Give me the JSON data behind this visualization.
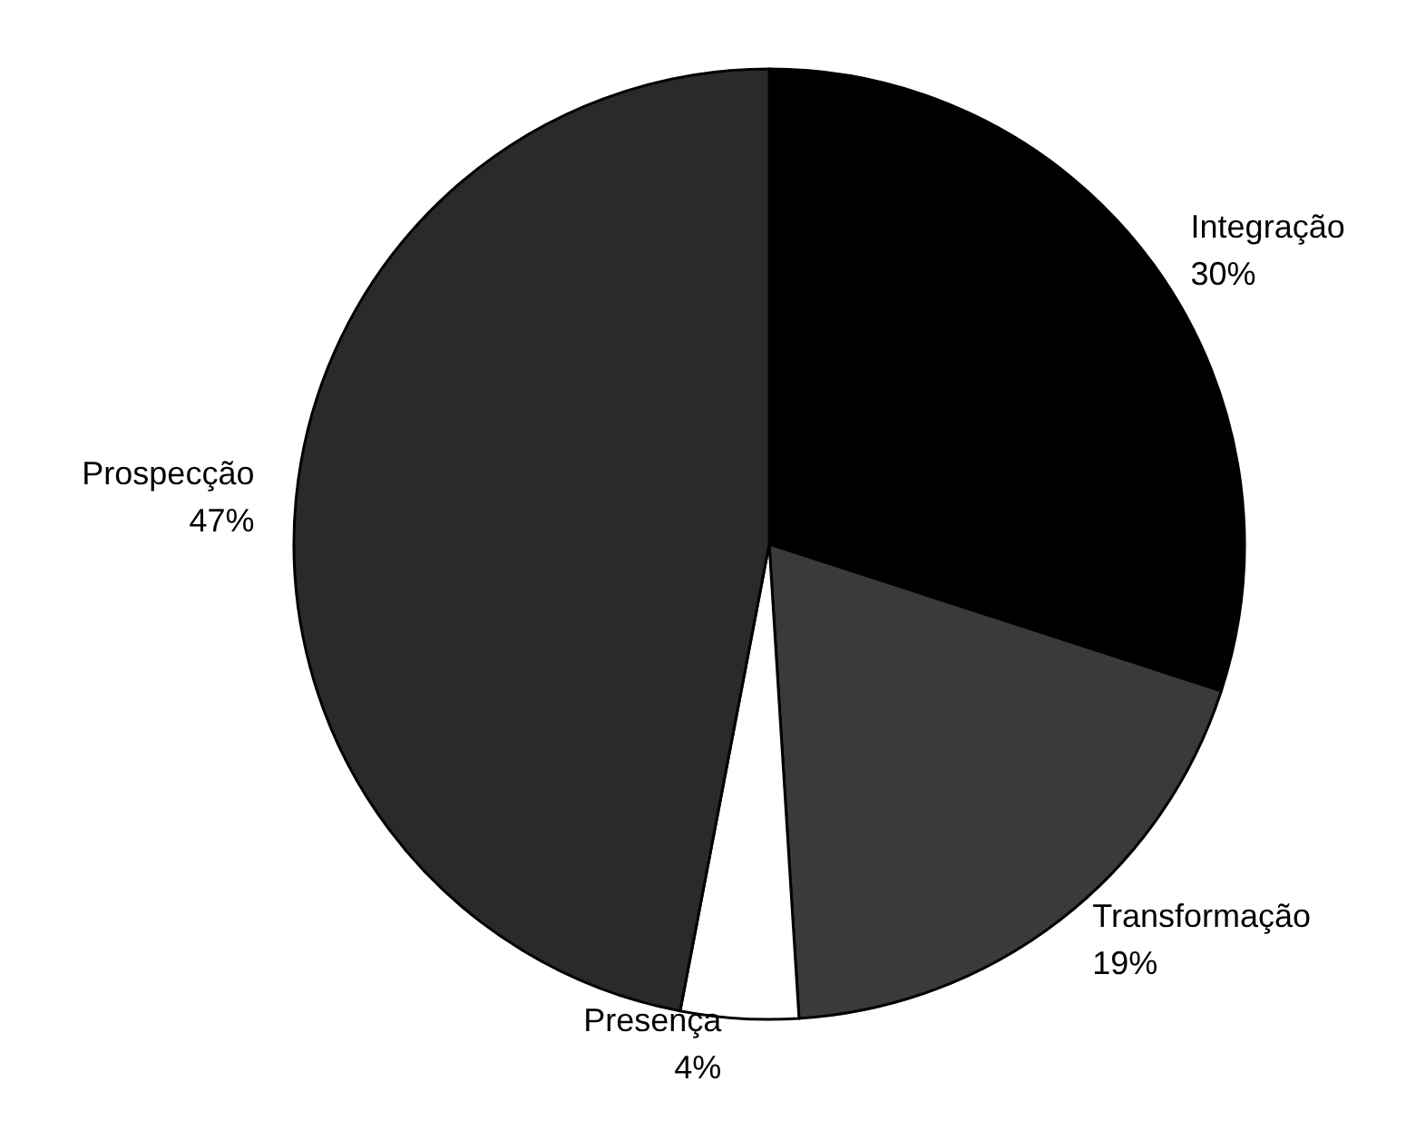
{
  "chart_data": {
    "type": "pie",
    "categories": [
      "Integração",
      "Transformação",
      "Presença",
      "Prospecção"
    ],
    "values": [
      30,
      19,
      4,
      47
    ],
    "value_labels": [
      "30%",
      "19%",
      "4%",
      "47%"
    ],
    "colors": [
      "#000000",
      "#3a3a3a",
      "#ffffff",
      "#2a2a2a"
    ],
    "legend": false
  }
}
